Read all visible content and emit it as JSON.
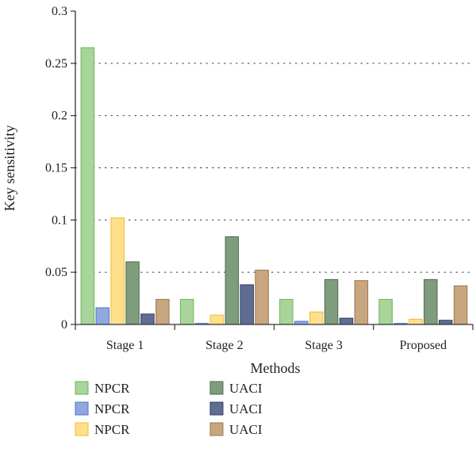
{
  "chart_data": {
    "type": "bar",
    "title": "",
    "xlabel": "Methods",
    "ylabel": "Key sensitivity",
    "categories": [
      "Stage 1",
      "Stage 2",
      "Stage 3",
      "Proposed"
    ],
    "ylim": [
      0,
      0.3
    ],
    "yticks": [
      "0",
      "0.05",
      "0.1",
      "0.15",
      "0.2",
      "0.25",
      "0.3"
    ],
    "grid": "horizontal-dotted",
    "legend_position": "bottom",
    "series": [
      {
        "name": "NPCR",
        "color": "#a9d49a",
        "stroke": "#6ab55a",
        "values": [
          0.265,
          0.024,
          0.024,
          0.024
        ]
      },
      {
        "name": "NPCR",
        "color": "#8fa9e0",
        "stroke": "#4f72c4",
        "values": [
          0.016,
          0.001,
          0.003,
          0.001
        ]
      },
      {
        "name": "NPCR",
        "color": "#ffe08a",
        "stroke": "#f0b93a",
        "values": [
          0.102,
          0.009,
          0.012,
          0.005
        ]
      },
      {
        "name": "UACI",
        "color": "#7f9c7d",
        "stroke": "#4d6b4b",
        "values": [
          0.06,
          0.084,
          0.043,
          0.043
        ]
      },
      {
        "name": "UACI",
        "color": "#5f6d95",
        "stroke": "#2f3d63",
        "values": [
          0.01,
          0.038,
          0.006,
          0.004
        ]
      },
      {
        "name": "UACI",
        "color": "#c8a67f",
        "stroke": "#9a7650",
        "values": [
          0.024,
          0.052,
          0.042,
          0.037
        ]
      }
    ]
  }
}
